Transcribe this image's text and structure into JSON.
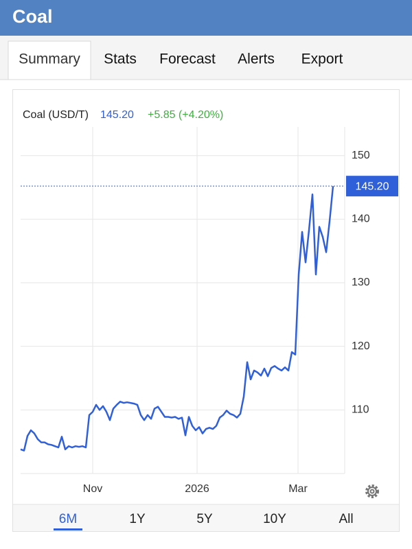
{
  "header": {
    "title": "Coal"
  },
  "tabs": [
    "Summary",
    "Stats",
    "Forecast",
    "Alerts",
    "Export"
  ],
  "chart_data": {
    "type": "line",
    "series": [
      {
        "name": "Coal (USD/T)",
        "color": "#2f5fd9",
        "values": [
          103.8,
          103.6,
          105.9,
          106.8,
          106.3,
          105.4,
          104.9,
          104.9,
          104.6,
          104.5,
          104.3,
          104.1,
          105.8,
          103.8,
          104.3,
          104.1,
          104.3,
          104.2,
          104.3,
          104.1,
          109.2,
          109.7,
          110.8,
          110.0,
          110.6,
          109.7,
          108.4,
          110.2,
          110.8,
          111.3,
          111.1,
          111.2,
          111.1,
          111.0,
          110.8,
          109.2,
          108.4,
          109.2,
          108.6,
          110.2,
          110.5,
          109.7,
          108.9,
          108.9,
          108.8,
          108.9,
          108.6,
          108.8,
          106.0,
          108.9,
          107.5,
          106.8,
          107.3,
          106.3,
          107.0,
          107.2,
          107.0,
          107.5,
          108.8,
          109.2,
          109.9,
          109.4,
          109.2,
          108.8,
          109.4,
          112.1,
          117.5,
          114.8,
          116.2,
          115.9,
          115.4,
          116.5,
          115.3,
          116.6,
          116.9,
          116.5,
          116.2,
          116.7,
          116.2,
          119.1,
          118.7,
          131.3,
          138.0,
          133.2,
          138.3,
          143.9,
          131.3,
          138.8,
          137.2,
          134.8,
          139.7,
          145.2
        ]
      }
    ],
    "last": {
      "value": 145.2,
      "label": "145.20"
    },
    "change": "+5.85 (+4.20%)",
    "xlim": [
      0,
      94.4
    ],
    "xticks": [
      {
        "value": 21,
        "label": "Nov"
      },
      {
        "value": 51.4,
        "label": "2026"
      },
      {
        "value": 80.8,
        "label": "Mar"
      }
    ],
    "ylim": [
      100,
      154.5
    ],
    "yticks": [
      110,
      120,
      130,
      140,
      150
    ],
    "grid": true
  },
  "ranges": [
    "6M",
    "1Y",
    "5Y",
    "10Y",
    "All"
  ]
}
